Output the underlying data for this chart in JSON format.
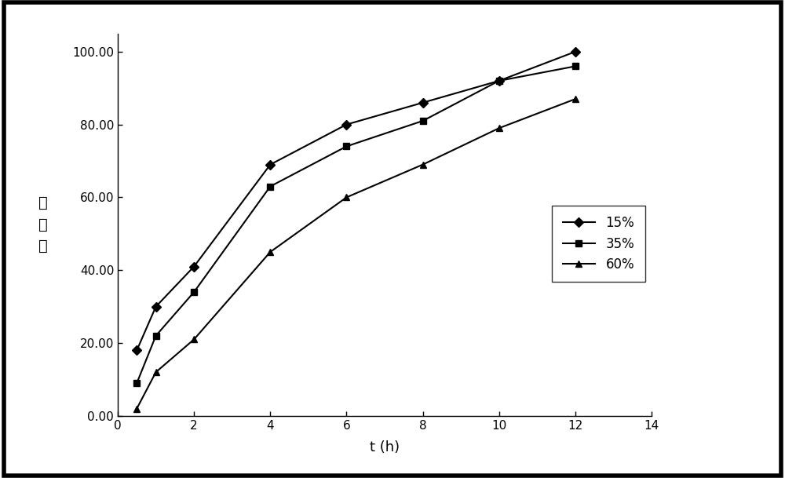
{
  "series": [
    {
      "label": "15%",
      "marker": "D",
      "x": [
        0.5,
        1,
        2,
        4,
        6,
        8,
        10,
        12
      ],
      "y": [
        18,
        30,
        41,
        69,
        80,
        86,
        92,
        100
      ]
    },
    {
      "label": "35%",
      "marker": "s",
      "x": [
        0.5,
        1,
        2,
        4,
        6,
        8,
        10,
        12
      ],
      "y": [
        9,
        22,
        34,
        63,
        74,
        81,
        92,
        96
      ]
    },
    {
      "label": "60%",
      "marker": "^",
      "x": [
        0.5,
        1,
        2,
        4,
        6,
        8,
        10,
        12
      ],
      "y": [
        2,
        12,
        21,
        45,
        60,
        69,
        79,
        87
      ]
    }
  ],
  "xlabel": "t (h)",
  "ylabel": "溶出度",
  "xlim": [
    0,
    14
  ],
  "ylim": [
    0,
    105
  ],
  "yticks": [
    0.0,
    20.0,
    40.0,
    60.0,
    80.0,
    100.0
  ],
  "ytick_labels": [
    "0.00",
    "20.00",
    "40.00",
    "60.00",
    "80.00",
    "100.00"
  ],
  "xticks": [
    0,
    2,
    4,
    6,
    8,
    10,
    12,
    14
  ],
  "xtick_labels": [
    "0",
    "2",
    "4",
    "6",
    "8",
    "10",
    "12",
    "14"
  ],
  "line_color": "#000000",
  "background_color": "#ffffff",
  "legend_loc": "lower right",
  "markersize": 6,
  "linewidth": 1.5,
  "border_linewidth": 4
}
